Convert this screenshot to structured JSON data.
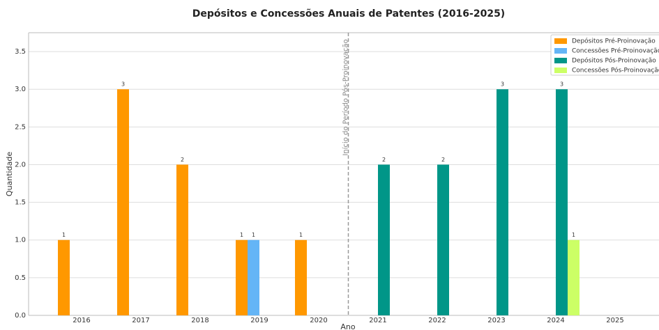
{
  "chart_data": {
    "type": "bar",
    "title": "Depósitos e Concessões Anuais de Patentes (2016-2025)",
    "x_label": "Ano",
    "y_label": "Quantidade",
    "categories": [
      "2016",
      "2017",
      "2018",
      "2019",
      "2020",
      "2021",
      "2022",
      "2023",
      "2024",
      "2025"
    ],
    "series": [
      {
        "name": "Depósitos Pré-Proinovação",
        "color": "#ff9800",
        "values": [
          1,
          3,
          2,
          1,
          1,
          0,
          0,
          0,
          0,
          0
        ]
      },
      {
        "name": "Concessões Pré-Proinovação",
        "color": "#64b5f6",
        "values": [
          0,
          0,
          0,
          1,
          0,
          0,
          0,
          0,
          0,
          0
        ]
      },
      {
        "name": "Depósitos Pós-Proinovação",
        "color": "#009688",
        "values": [
          0,
          0,
          0,
          0,
          0,
          2,
          2,
          3,
          3,
          0
        ]
      },
      {
        "name": "Concessões Pós-Proinovação",
        "color": "#ccff66",
        "values": [
          0,
          0,
          0,
          0,
          0,
          0,
          0,
          0,
          1,
          0
        ]
      }
    ],
    "ylim": [
      0,
      3.75
    ],
    "yticks": [
      {
        "value": 0,
        "label": "0.0"
      },
      {
        "value": 0.5,
        "label": "0.5"
      },
      {
        "value": 1,
        "label": "1.0"
      },
      {
        "value": 1.5,
        "label": "1.5"
      },
      {
        "value": 2,
        "label": "2.0"
      },
      {
        "value": 2.5,
        "label": "2.5"
      },
      {
        "value": 3,
        "label": "3.0"
      },
      {
        "value": 3.5,
        "label": "3.5"
      }
    ],
    "grid": true,
    "legend": "upper right",
    "annotation": {
      "text": "Início do Período Pós-Proinovação",
      "x": 4.5
    }
  }
}
